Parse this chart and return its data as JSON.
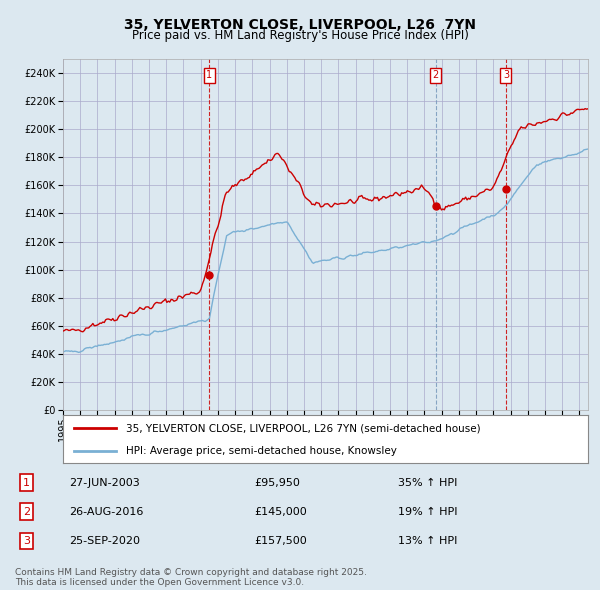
{
  "title_line1": "35, YELVERTON CLOSE, LIVERPOOL, L26  7YN",
  "title_line2": "Price paid vs. HM Land Registry's House Price Index (HPI)",
  "ylim": [
    0,
    250000
  ],
  "yticks": [
    0,
    20000,
    40000,
    60000,
    80000,
    100000,
    120000,
    140000,
    160000,
    180000,
    200000,
    220000,
    240000
  ],
  "xlim_start": 1995.0,
  "xlim_end": 2025.5,
  "red_line_color": "#cc0000",
  "blue_line_color": "#7ab0d4",
  "sale_marker_color": "#cc0000",
  "sale_dates": [
    2003.49,
    2016.65,
    2020.73
  ],
  "sale_prices": [
    95950,
    145000,
    157500
  ],
  "sale_labels": [
    "1",
    "2",
    "3"
  ],
  "sale_vline_colors": [
    "#cc0000",
    "#7799bb",
    "#cc0000"
  ],
  "sale_vline_styles": [
    "--",
    "--",
    "--"
  ],
  "sale_date_strings": [
    "27-JUN-2003",
    "26-AUG-2016",
    "25-SEP-2020"
  ],
  "sale_price_strings": [
    "£95,950",
    "£145,000",
    "£157,500"
  ],
  "sale_hpi_strings": [
    "35% ↑ HPI",
    "19% ↑ HPI",
    "13% ↑ HPI"
  ],
  "legend_label_red": "35, YELVERTON CLOSE, LIVERPOOL, L26 7YN (semi-detached house)",
  "legend_label_blue": "HPI: Average price, semi-detached house, Knowsley",
  "footer_text": "Contains HM Land Registry data © Crown copyright and database right 2025.\nThis data is licensed under the Open Government Licence v3.0.",
  "bg_color": "#dce8f0",
  "plot_bg_color": "#dce8f0",
  "legend_bg_color": "#ffffff",
  "grid_color": "#aaaacc"
}
